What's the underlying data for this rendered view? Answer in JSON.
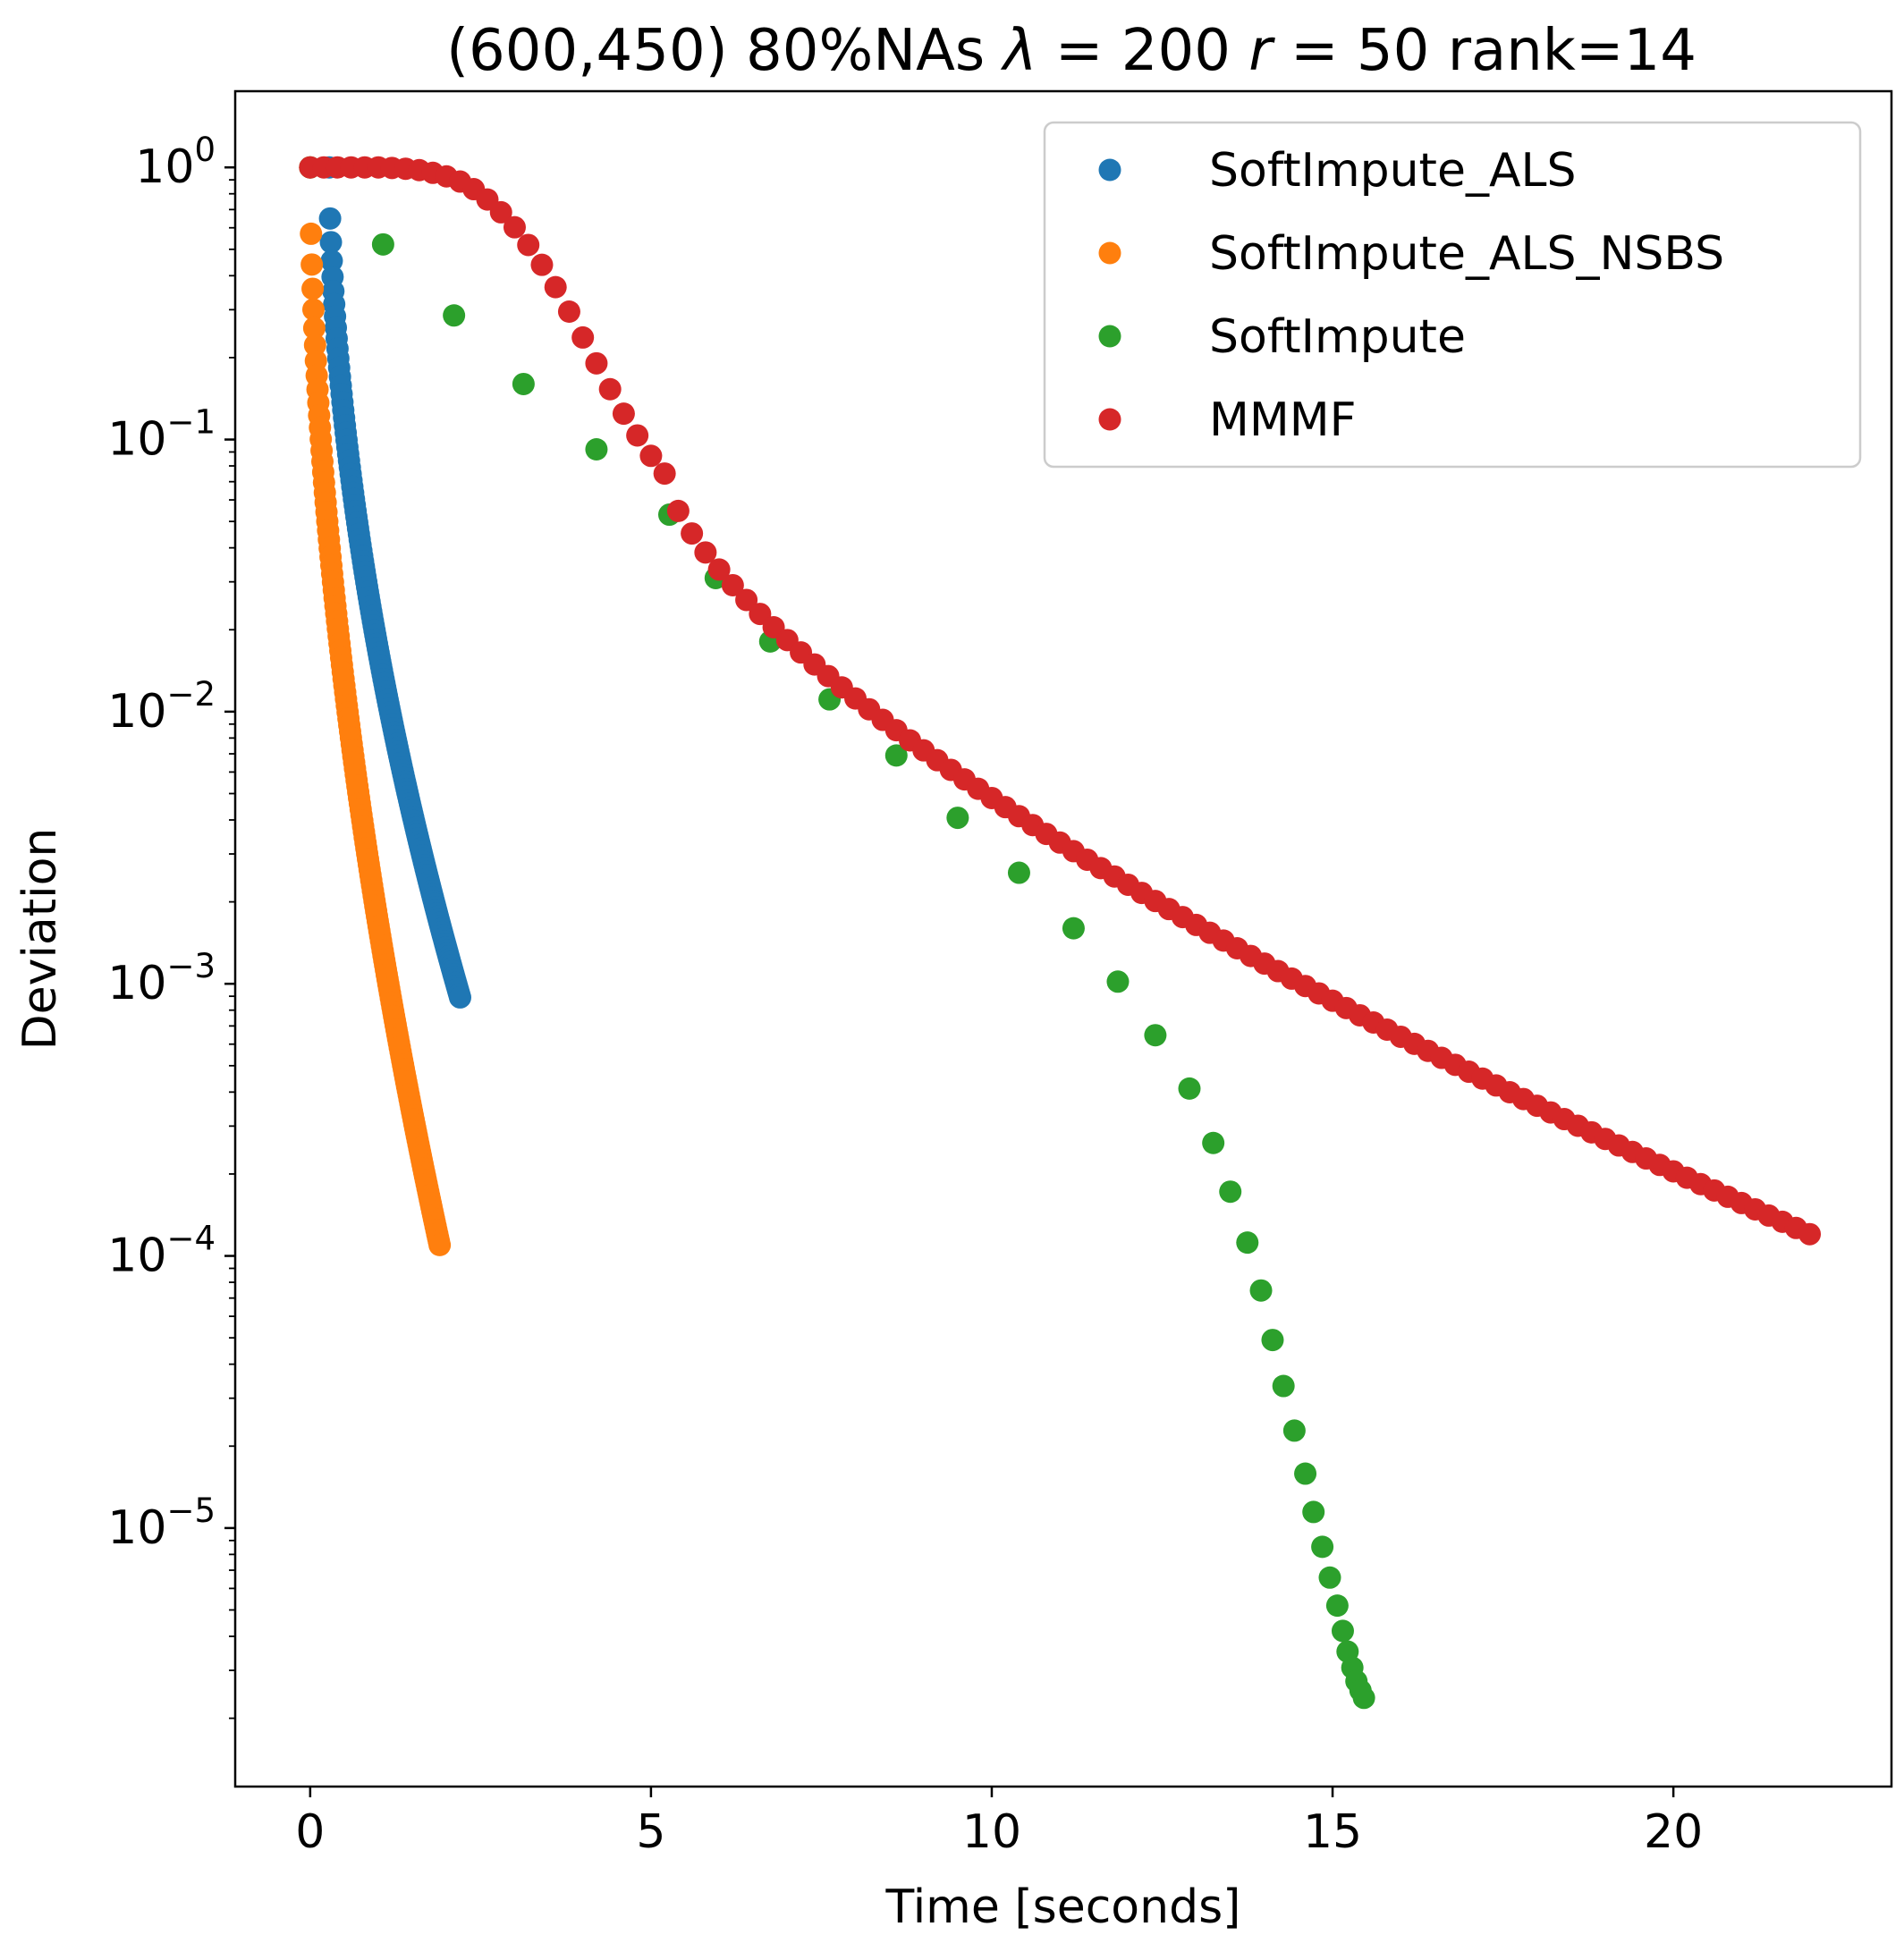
{
  "chart_data": {
    "type": "scatter",
    "title": "(600,450) 80%NAs λ = 200 r = 50 rank=14",
    "title_parts": {
      "prefix": "(600,450) 80%NAs ",
      "lambda_sym": "λ",
      "lambda_val": " = 200 ",
      "r_sym": "r",
      "r_val": " = 50 rank=14"
    },
    "xlabel": "Time [seconds]",
    "ylabel": "Deviation",
    "xlim": [
      -1.1,
      23.2
    ],
    "ylim_log10": [
      -5.95,
      0.28
    ],
    "yscale": "log",
    "grid": false,
    "legend_position": "top-right",
    "x_ticks": [
      0,
      5,
      10,
      15,
      20
    ],
    "y_ticks": [
      {
        "exp": 0,
        "label": "0"
      },
      {
        "exp": -1,
        "label": "−1"
      },
      {
        "exp": -2,
        "label": "−2"
      },
      {
        "exp": -3,
        "label": "−3"
      },
      {
        "exp": -4,
        "label": "−4"
      },
      {
        "exp": -5,
        "label": "−5"
      }
    ],
    "y_tick_base": "10",
    "series": [
      {
        "name": "SoftImpute_ALS",
        "color": "#1f77b4",
        "curve": {
          "t0": 0.28,
          "t1": 2.2,
          "logStart": 0.0,
          "logEnd": -3.05,
          "n": 160,
          "shape": 0.55
        }
      },
      {
        "name": "SoftImpute_ALS_NSBS",
        "color": "#ff7f0e",
        "curve": {
          "t0": 0.0,
          "t1": 1.9,
          "logStart": 0.0,
          "logEnd": -3.96,
          "n": 160,
          "shape": 0.55
        }
      },
      {
        "name": "SoftImpute",
        "color": "#2ca02c",
        "x": [
          0.0,
          1.07,
          2.11,
          3.13,
          4.2,
          5.27,
          5.95,
          6.75,
          7.62,
          8.6,
          9.5,
          10.4,
          11.2,
          11.85,
          12.4,
          12.9,
          13.25,
          13.5,
          13.75,
          13.95,
          14.12,
          14.28,
          14.44,
          14.6,
          14.72,
          14.85,
          14.96,
          15.07,
          15.15,
          15.22,
          15.29,
          15.35,
          15.41,
          15.46
        ],
        "log10_y": [
          0.0,
          -0.283,
          -0.544,
          -0.796,
          -1.036,
          -1.276,
          -1.509,
          -1.742,
          -1.955,
          -2.161,
          -2.39,
          -2.592,
          -2.796,
          -2.992,
          -3.189,
          -3.385,
          -3.585,
          -3.764,
          -3.951,
          -4.127,
          -4.309,
          -4.478,
          -4.642,
          -4.8,
          -4.941,
          -5.069,
          -5.182,
          -5.285,
          -5.378,
          -5.454,
          -5.513,
          -5.563,
          -5.597,
          -5.624
        ]
      },
      {
        "name": "MMMF",
        "color": "#d62728",
        "x": [
          0.0,
          0.2,
          0.4,
          0.6,
          0.8,
          1.0,
          1.2,
          1.4,
          1.6,
          1.8,
          2.0,
          2.2,
          2.4,
          2.6,
          2.8,
          3.0,
          3.2,
          3.4,
          3.6,
          3.8,
          4.0,
          4.2,
          4.4,
          4.6,
          4.8,
          5.0,
          5.2
        ],
        "log10_y": [
          0.0,
          0.0,
          0.0,
          0.0,
          0.0,
          0.0,
          -0.002,
          -0.005,
          -0.01,
          -0.02,
          -0.033,
          -0.052,
          -0.08,
          -0.118,
          -0.165,
          -0.22,
          -0.285,
          -0.358,
          -0.44,
          -0.53,
          -0.625,
          -0.72,
          -0.815,
          -0.905,
          -0.985,
          -1.06,
          -1.125
        ],
        "tail": {
          "t0": 5.2,
          "t1": 22.0,
          "logStart": -1.125,
          "logEnd": -3.92,
          "step": 0.2,
          "shape": 0.68
        }
      }
    ]
  }
}
